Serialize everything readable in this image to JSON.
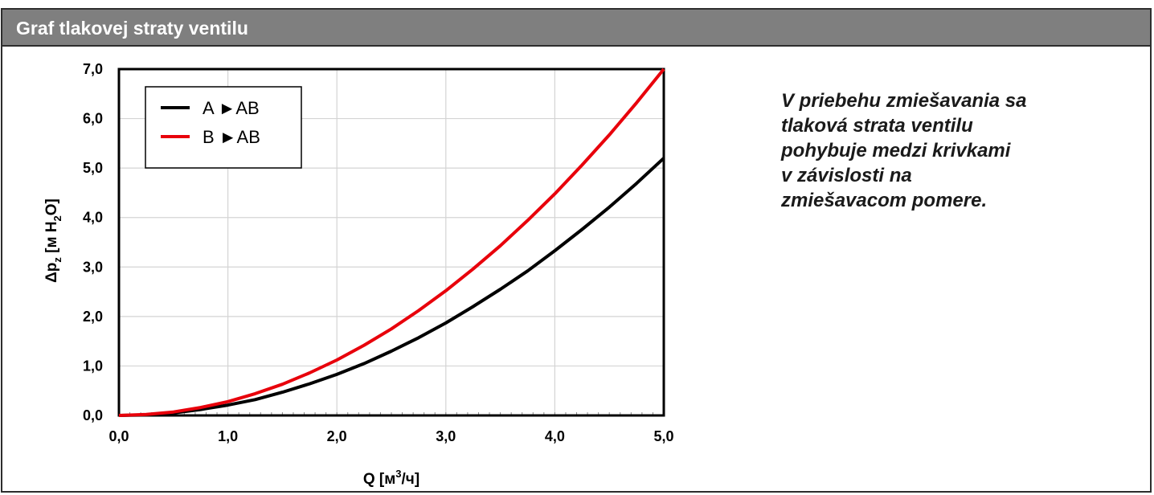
{
  "header": {
    "title": "Graf tlakovej straty ventilu"
  },
  "note": {
    "lines": [
      "V priebehu zmiešavania sa",
      "tlaková strata ventilu",
      "pohybuje medzi krivkami",
      "v závislosti na",
      "zmiešavacom pomere."
    ]
  },
  "chart_data": {
    "type": "line",
    "title": "",
    "xlabel": {
      "main": "Q [м",
      "sup": "3",
      "tail": "/ч]"
    },
    "ylabel": {
      "main": "Δp",
      "sub1": "z",
      "mid": " [м H",
      "sub2": "2",
      "tail": "O]"
    },
    "xlim": [
      0,
      5
    ],
    "ylim": [
      0,
      7
    ],
    "x_ticks": [
      "0,0",
      "1,0",
      "2,0",
      "3,0",
      "4,0",
      "5,0"
    ],
    "y_ticks": [
      "0,0",
      "1,0",
      "2,0",
      "3,0",
      "4,0",
      "5,0",
      "6,0",
      "7,0"
    ],
    "grid": true,
    "legend_position": "top-left",
    "x": [
      0,
      0.25,
      0.5,
      0.75,
      1.0,
      1.25,
      1.5,
      1.75,
      2.0,
      2.25,
      2.5,
      2.75,
      3.0,
      3.25,
      3.5,
      3.75,
      4.0,
      4.25,
      4.5,
      4.75,
      5.0
    ],
    "series": [
      {
        "name": "A ►AB",
        "color": "#000000",
        "values": [
          0,
          0.01,
          0.05,
          0.12,
          0.21,
          0.32,
          0.47,
          0.64,
          0.83,
          1.05,
          1.3,
          1.57,
          1.87,
          2.2,
          2.55,
          2.92,
          3.33,
          3.76,
          4.21,
          4.69,
          5.2
        ]
      },
      {
        "name": "B ►AB",
        "color": "#e8000b",
        "values": [
          0,
          0.02,
          0.07,
          0.16,
          0.28,
          0.44,
          0.63,
          0.86,
          1.12,
          1.42,
          1.75,
          2.12,
          2.52,
          2.96,
          3.43,
          3.94,
          4.48,
          5.06,
          5.67,
          6.32,
          7.0
        ]
      }
    ]
  }
}
